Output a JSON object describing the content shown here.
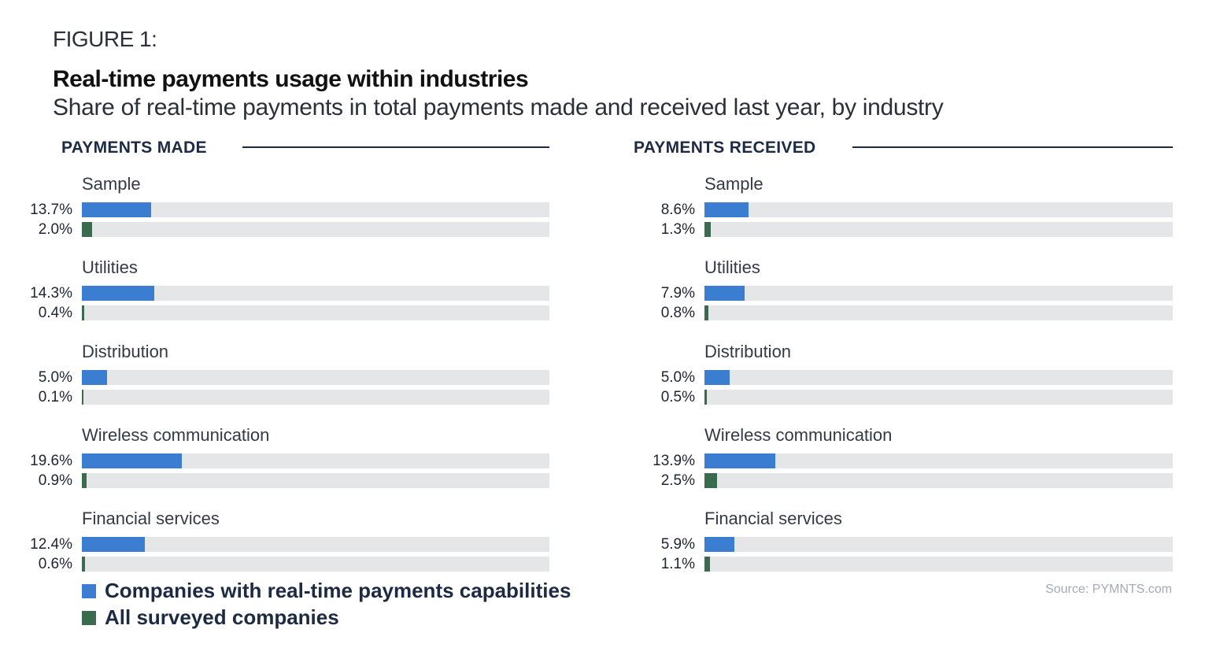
{
  "chart_data": {
    "type": "bar",
    "figure_label": "FIGURE 1:",
    "title": "Real-time payments usage within industries",
    "subtitle": "Share of real-time payments in total payments made and received last year, by industry",
    "categories": [
      "Sample",
      "Utilities",
      "Distribution",
      "Wireless communication",
      "Financial services"
    ],
    "panels": [
      {
        "title": "PAYMENTS MADE",
        "series": [
          {
            "name": "Companies with real-time payments capabilities",
            "values": [
              13.7,
              14.3,
              5.0,
              19.6,
              12.4
            ],
            "labels": [
              "13.7%",
              "14.3%",
              "5.0%",
              "19.6%",
              "12.4%"
            ]
          },
          {
            "name": "All surveyed companies",
            "values": [
              2.0,
              0.4,
              0.1,
              0.9,
              0.6
            ],
            "labels": [
              "2.0%",
              "0.4%",
              "0.1%",
              "0.9%",
              "0.6%"
            ]
          }
        ]
      },
      {
        "title": "PAYMENTS RECEIVED",
        "series": [
          {
            "name": "Companies with real-time payments capabilities",
            "values": [
              8.6,
              7.9,
              5.0,
              13.9,
              5.9
            ],
            "labels": [
              "8.6%",
              "7.9%",
              "5.0%",
              "13.9%",
              "5.9%"
            ]
          },
          {
            "name": "All surveyed companies",
            "values": [
              1.3,
              0.8,
              0.5,
              2.5,
              1.1
            ],
            "labels": [
              "1.3%",
              "0.8%",
              "0.5%",
              "2.5%",
              "1.1%"
            ]
          }
        ]
      }
    ],
    "xlim": [
      0,
      92
    ],
    "legend": [
      "Companies with real-time payments capabilities",
      "All surveyed companies"
    ],
    "legend_placement": "bottom-left",
    "source": "Source: PYMNTS.com",
    "colors": {
      "capable": "#3b7dd0",
      "all": "#3a6b4f",
      "track": "#e5e6e8"
    }
  }
}
